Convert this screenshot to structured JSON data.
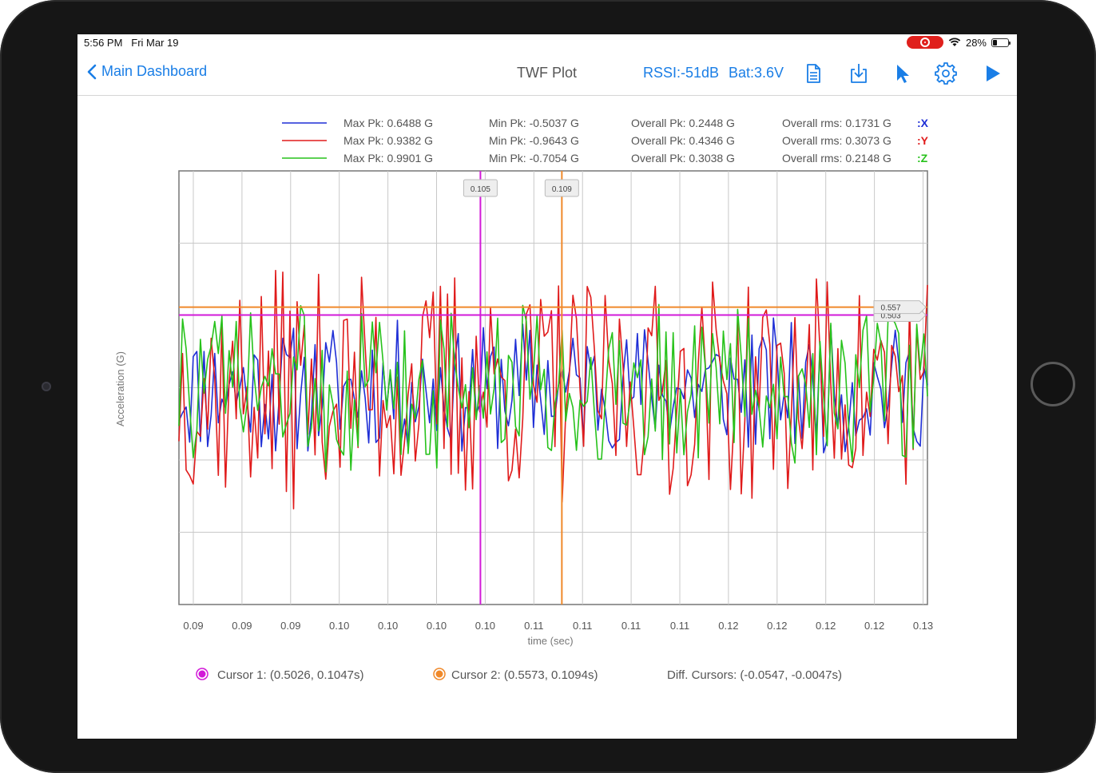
{
  "status": {
    "time": "5:56 PM",
    "date": "Fri Mar 19",
    "battery": "28%",
    "battery_level": 0.28,
    "icons": [
      "screen-record-icon",
      "wifi-icon",
      "battery-icon"
    ]
  },
  "nav": {
    "back_label": "Main Dashboard",
    "title": "TWF Plot",
    "rssi": "RSSI:-51dB",
    "battery": "Bat:3.6V",
    "icons": [
      "document-icon",
      "download-icon",
      "cursor-pointer-icon",
      "gear-icon",
      "play-icon"
    ],
    "accent": "#1a7ee6"
  },
  "legend": {
    "rows": [
      {
        "axis": ":X",
        "color": "#1f2fd6",
        "max_pk": "Max Pk: 0.6488 G",
        "min_pk": "Min Pk: -0.5037 G",
        "overall_pk": "Overall Pk: 0.2448 G",
        "overall_rms": "Overall rms: 0.1731 G"
      },
      {
        "axis": ":Y",
        "color": "#e01b1b",
        "max_pk": "Max Pk: 0.9382 G",
        "min_pk": "Min Pk: -0.9643 G",
        "overall_pk": "Overall Pk: 0.4346 G",
        "overall_rms": "Overall rms: 0.3073 G"
      },
      {
        "axis": ":Z",
        "color": "#27c21b",
        "max_pk": "Max Pk: 0.9901 G",
        "min_pk": "Min Pk: -0.7054 G",
        "overall_pk": "Overall Pk: 0.3038 G",
        "overall_rms": "Overall rms: 0.2148 G"
      }
    ]
  },
  "chart_data": {
    "type": "line",
    "xlabel": "time (sec)",
    "ylabel": "Acceleration (G)",
    "x_tick_labels": [
      "0.09",
      "0.09",
      "0.09",
      "0.10",
      "0.10",
      "0.10",
      "0.10",
      "0.11",
      "0.11",
      "0.11",
      "0.11",
      "0.12",
      "0.12",
      "0.12",
      "0.12",
      "0.13"
    ],
    "xlim": [
      0.0873,
      0.1305
    ],
    "ylim": [
      -1.5,
      1.5
    ],
    "grid": true,
    "series": [
      {
        "name": ":X",
        "color": "#1f2fd6",
        "seed": 11,
        "peak_max": 0.6488,
        "peak_min": -0.5037,
        "rms": 0.1731
      },
      {
        "name": ":Y",
        "color": "#e01b1b",
        "seed": 37,
        "peak_max": 0.9382,
        "peak_min": -0.9643,
        "rms": 0.3073
      },
      {
        "name": ":Z",
        "color": "#27c21b",
        "seed": 73,
        "peak_max": 0.9901,
        "peak_min": -0.7054,
        "rms": 0.2148
      }
    ],
    "cursors": [
      {
        "label": "0.105",
        "x": 0.1047,
        "y": 0.5026,
        "y_label": "0.503",
        "color": "#d21ad8"
      },
      {
        "label": "0.109",
        "x": 0.1094,
        "y": 0.5573,
        "y_label": "0.557",
        "color": "#f0892a"
      }
    ]
  },
  "footer": {
    "cursor1": "Cursor 1: (0.5026, 0.1047s)",
    "cursor1_color": "#d21ad8",
    "cursor2": "Cursor 2: (0.5573, 0.1094s)",
    "cursor2_color": "#f0892a",
    "diff": "Diff. Cursors: (-0.0547, -0.0047s)"
  }
}
